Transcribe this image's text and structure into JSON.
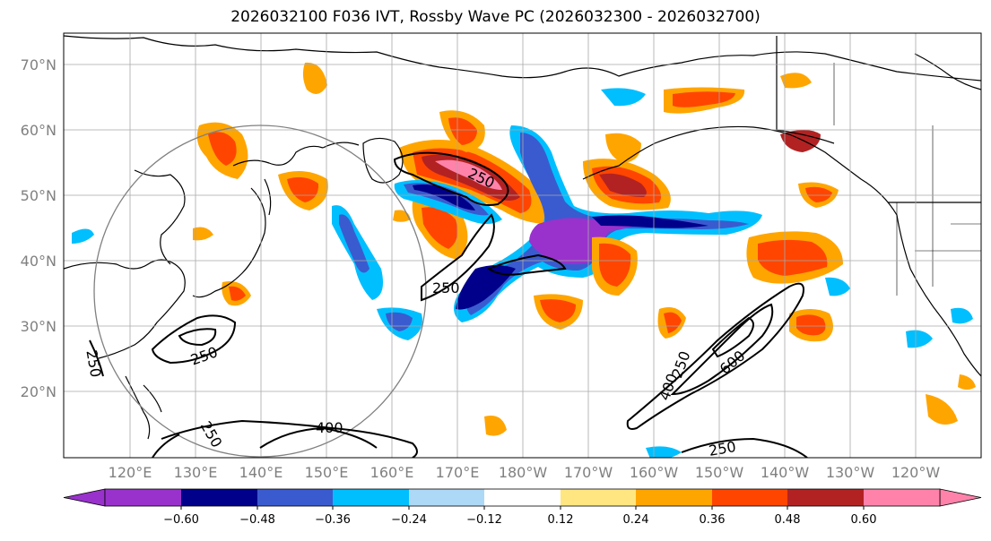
{
  "title": "2026032100 F036 IVT, Rossby Wave PC (2026032300 - 2026032700)",
  "map": {
    "lat_labels": [
      "70°N",
      "60°N",
      "50°N",
      "40°N",
      "30°N",
      "20°N"
    ],
    "lon_labels": [
      "120°E",
      "130°E",
      "140°E",
      "150°E",
      "160°E",
      "170°E",
      "180°W",
      "170°W",
      "160°W",
      "150°W",
      "140°W",
      "130°W",
      "120°W"
    ],
    "contour_labels": [
      "250",
      "250",
      "250",
      "250",
      "250",
      "400",
      "400",
      "250",
      "600",
      "250"
    ],
    "colors": {
      "neg_lt_060": "#9932CC",
      "neg_060_048": "#00008B",
      "neg_048_036": "#3A5BCF",
      "neg_036_024": "#00BFFF",
      "neg_024_012": "#ADD8F6",
      "neutral": "#FFFFFF",
      "pos_012_024": "#FFE680",
      "pos_024_036": "#FFA500",
      "pos_036_048": "#FF4500",
      "pos_048_060": "#B22222",
      "pos_gt_060": "#FF82AB"
    }
  },
  "colorbar": {
    "ticks": [
      "−0.60",
      "−0.48",
      "−0.36",
      "−0.24",
      "−0.12",
      "0.12",
      "0.24",
      "0.36",
      "0.48",
      "0.60"
    ],
    "colors": [
      "#9932CC",
      "#00008B",
      "#3A5BCF",
      "#00BFFF",
      "#ADD8F6",
      "#FFFFFF",
      "#FFE680",
      "#FFA500",
      "#FF4500",
      "#B22222",
      "#FF82AB"
    ]
  }
}
